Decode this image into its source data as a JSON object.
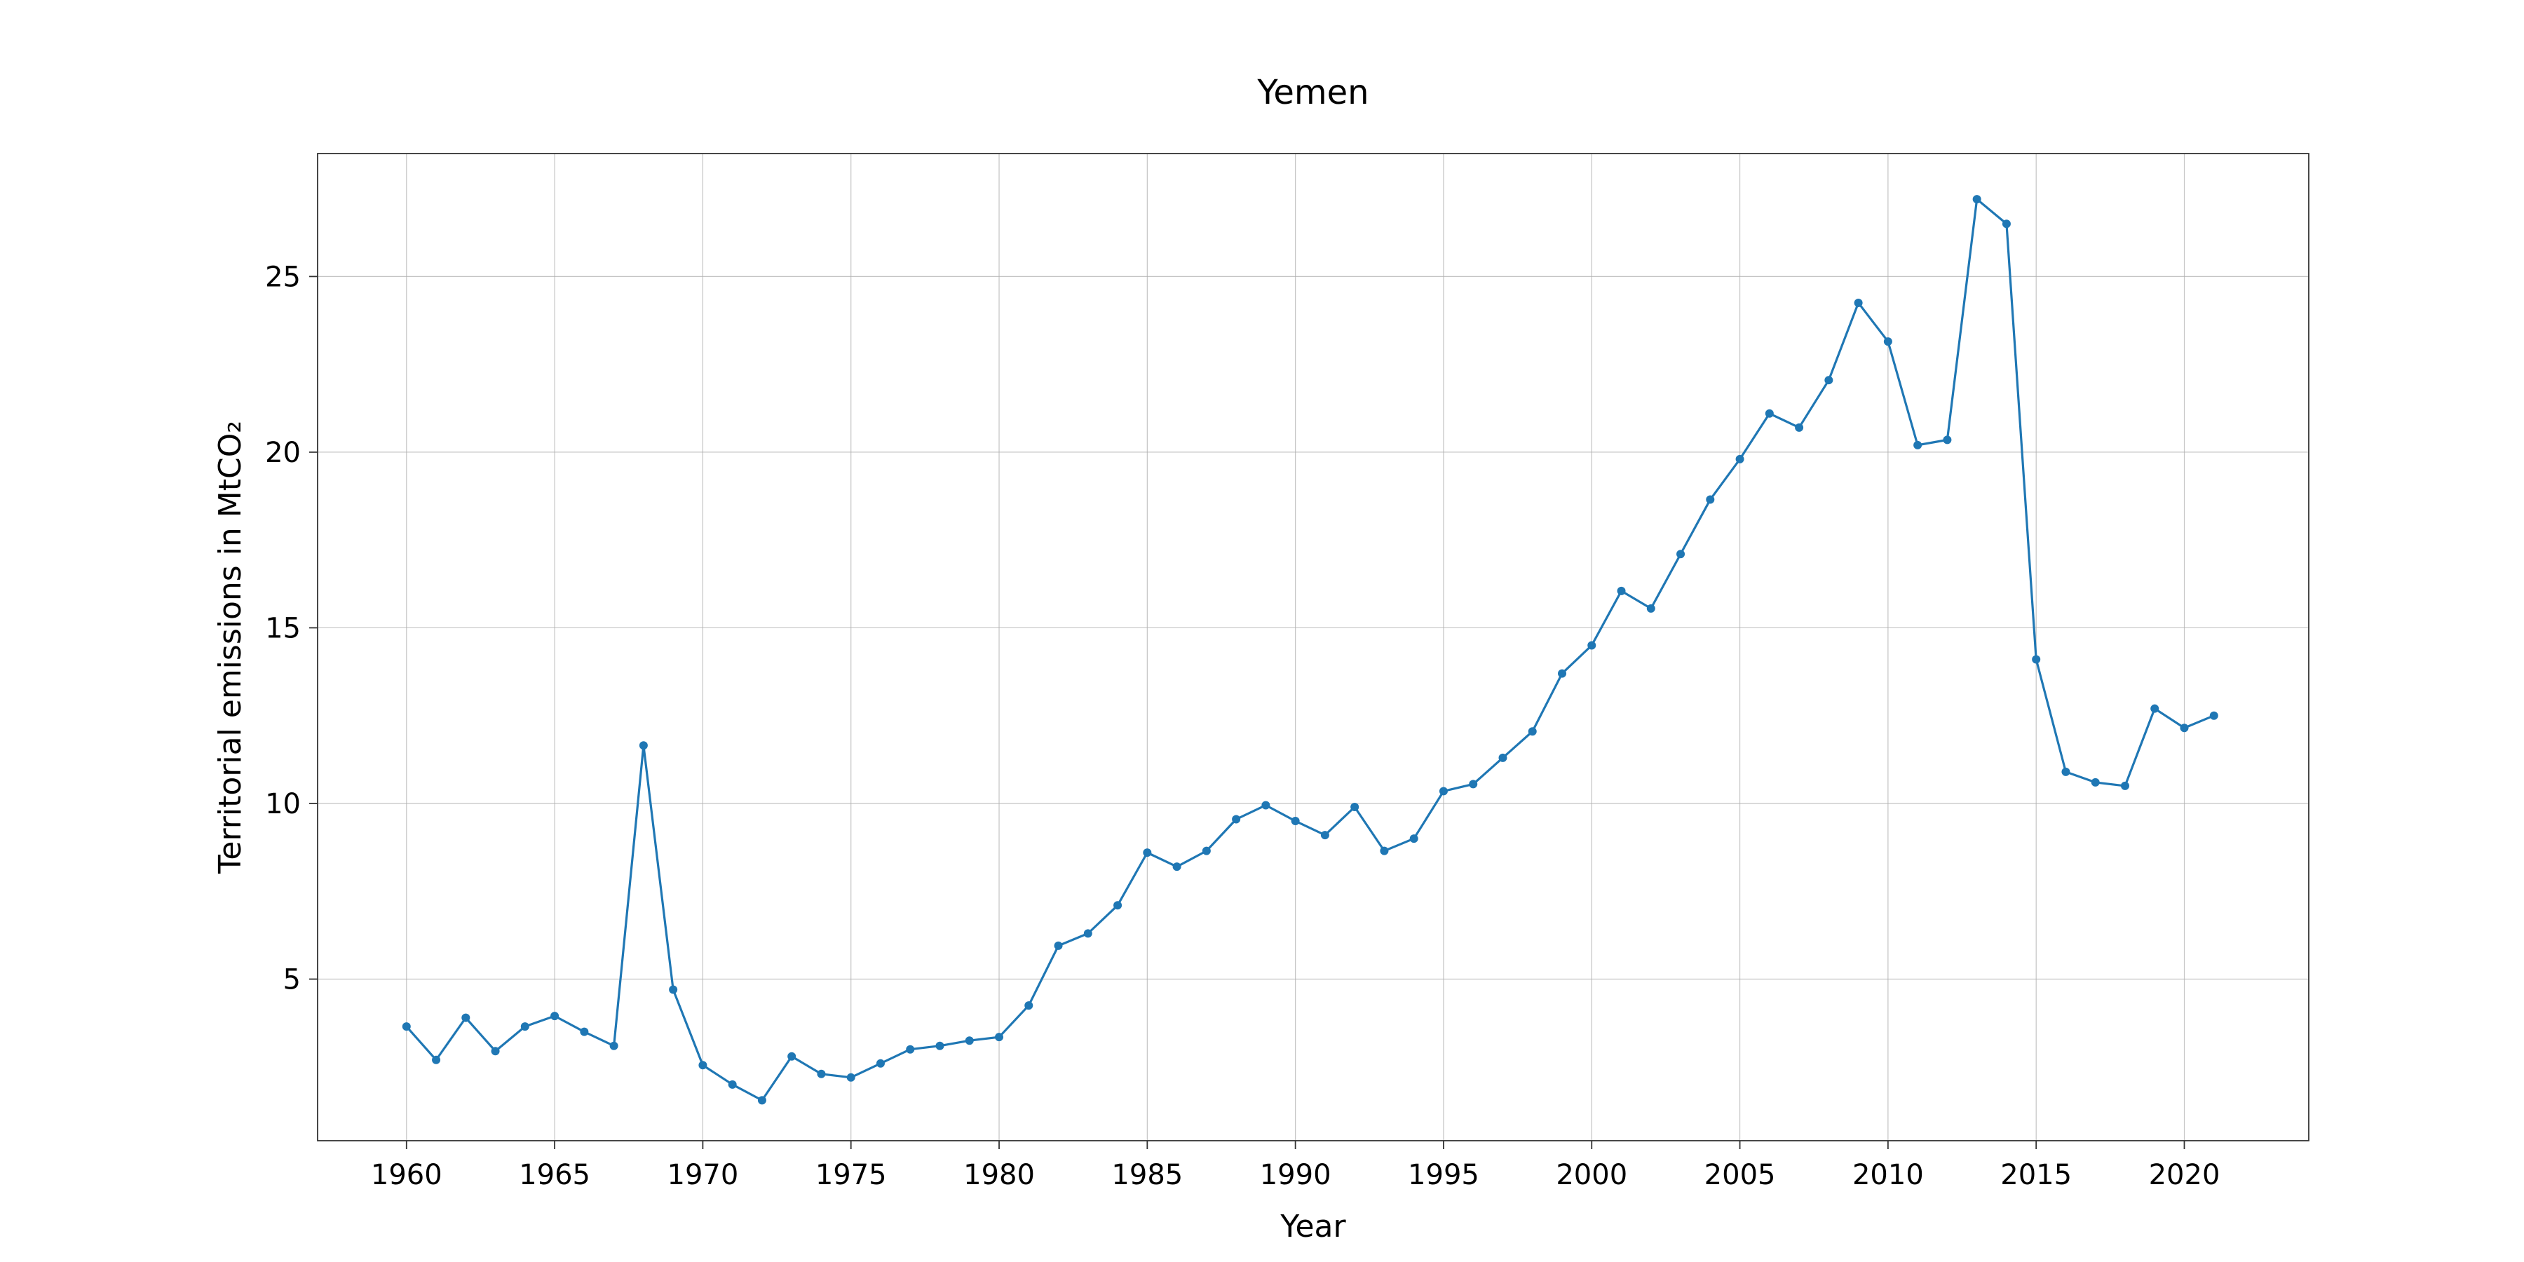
{
  "chart_data": {
    "type": "line",
    "title": "Yemen",
    "xlabel": "Year",
    "ylabel": "Territorial emissions in MtCO₂",
    "xlim": [
      1957,
      2024.2
    ],
    "ylim": [
      0.4,
      28.5
    ],
    "xticks": [
      1960,
      1965,
      1970,
      1975,
      1980,
      1985,
      1990,
      1995,
      2000,
      2005,
      2010,
      2015,
      2020
    ],
    "yticks": [
      5,
      10,
      15,
      20,
      25
    ],
    "grid": true,
    "legend": "none",
    "series_color": "#1f77b4",
    "x": [
      1960,
      1961,
      1962,
      1963,
      1964,
      1965,
      1966,
      1967,
      1968,
      1969,
      1970,
      1971,
      1972,
      1973,
      1974,
      1975,
      1976,
      1977,
      1978,
      1979,
      1980,
      1981,
      1982,
      1983,
      1984,
      1985,
      1986,
      1987,
      1988,
      1989,
      1990,
      1991,
      1992,
      1993,
      1994,
      1995,
      1996,
      1997,
      1998,
      1999,
      2000,
      2001,
      2002,
      2003,
      2004,
      2005,
      2006,
      2007,
      2008,
      2009,
      2010,
      2011,
      2012,
      2013,
      2014,
      2015,
      2016,
      2017,
      2018,
      2019,
      2020,
      2021
    ],
    "series": [
      {
        "values": [
          3.65,
          2.7,
          3.9,
          2.95,
          3.65,
          3.95,
          3.5,
          3.1,
          11.65,
          4.7,
          2.55,
          2.0,
          1.55,
          2.8,
          2.3,
          2.2,
          2.6,
          3.0,
          3.1,
          3.25,
          3.35,
          4.25,
          5.95,
          6.3,
          7.1,
          8.6,
          8.2,
          8.65,
          9.55,
          9.95,
          9.5,
          9.1,
          9.9,
          8.65,
          9.0,
          10.35,
          10.55,
          11.3,
          12.05,
          13.7,
          14.5,
          16.05,
          15.55,
          17.1,
          18.65,
          19.8,
          21.1,
          20.7,
          22.05,
          24.25,
          23.15,
          20.2,
          20.35,
          27.2,
          26.5,
          14.1,
          10.9,
          10.6,
          10.5,
          12.7,
          12.15,
          12.5
        ]
      }
    ]
  }
}
